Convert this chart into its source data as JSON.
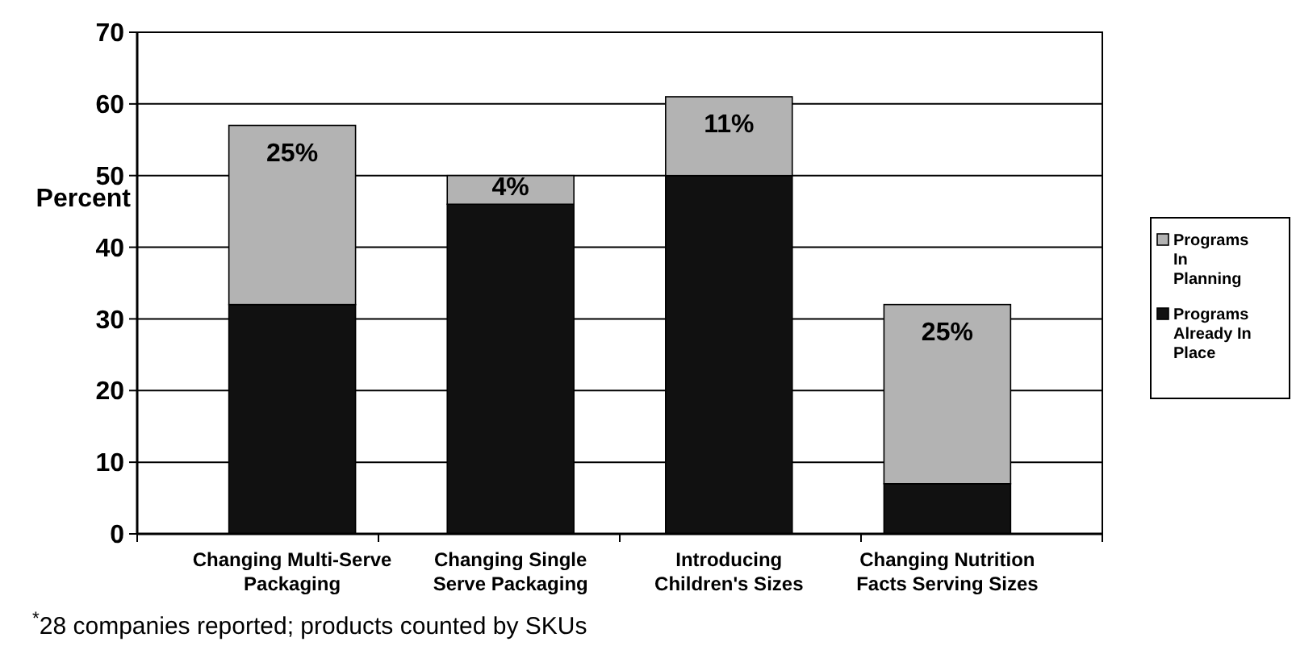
{
  "chart_data": {
    "type": "bar",
    "stacked": true,
    "ylabel": "Percent",
    "categories": [
      "Changing Multi-Serve Packaging",
      "Changing Single Serve Packaging",
      "Introducing Children's Sizes",
      "Changing Nutrition Facts Serving Sizes"
    ],
    "series": [
      {
        "name": "Programs Already In Place",
        "color": "#111111",
        "values": [
          32,
          46,
          50,
          7
        ]
      },
      {
        "name": "Programs In Planning",
        "color": "#b3b3b3",
        "values": [
          25,
          4,
          11,
          25
        ],
        "value_labels": [
          "25%",
          "4%",
          "11%",
          "25%"
        ]
      }
    ],
    "ylim": [
      0,
      70
    ],
    "yticks": [
      0,
      10,
      20,
      30,
      40,
      50,
      60,
      70
    ],
    "grid": "y",
    "legend": "right",
    "annotations": [
      "$^{*}$28 companies reported; products counted by SKUs"
    ]
  }
}
